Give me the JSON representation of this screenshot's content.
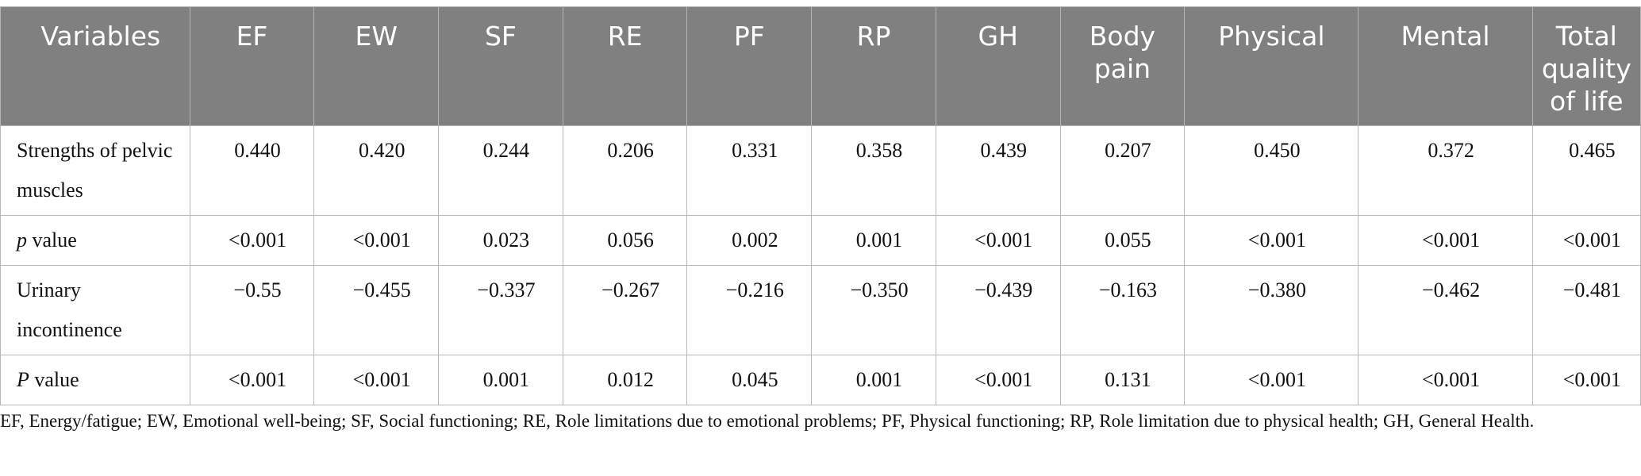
{
  "table": {
    "headers": [
      "Variables",
      "EF",
      "EW",
      "SF",
      "RE",
      "PF",
      "RP",
      "GH",
      "Body pain",
      "Physical",
      "Mental",
      "Total quality of life"
    ],
    "rows": [
      {
        "label": "Strengths of pelvic muscles",
        "label_italic": "",
        "label_rest": "",
        "cells": [
          "0.440",
          "0.420",
          "0.244",
          "0.206",
          "0.331",
          "0.358",
          "0.439",
          "0.207",
          "0.450",
          "0.372",
          "0.465"
        ]
      },
      {
        "label": "",
        "label_italic": "p",
        "label_rest": " value",
        "cells": [
          "<0.001",
          "<0.001",
          "0.023",
          "0.056",
          "0.002",
          "0.001",
          "<0.001",
          "0.055",
          "<0.001",
          "<0.001",
          "<0.001"
        ]
      },
      {
        "label": "Urinary incontinence",
        "label_italic": "",
        "label_rest": "",
        "cells": [
          "−0.55",
          "−0.455",
          "−0.337",
          "−0.267",
          "−0.216",
          "−0.350",
          "−0.439",
          "−0.163",
          "−0.380",
          "−0.462",
          "−0.481"
        ]
      },
      {
        "label": "",
        "label_italic": "P",
        "label_rest": " value",
        "cells": [
          "<0.001",
          "<0.001",
          "0.001",
          "0.012",
          "0.045",
          "0.001",
          "<0.001",
          "0.131",
          "<0.001",
          "<0.001",
          "<0.001"
        ]
      }
    ]
  },
  "footnote": "EF, Energy/fatigue; EW, Emotional well-being; SF, Social functioning; RE, Role limitations due to emotional problems; PF, Physical functioning; RP, Role limitation due to physical health; GH, General Health.",
  "colors": {
    "header_bg": "#808080",
    "header_text": "#ffffff",
    "border": "#b8b8b8"
  }
}
